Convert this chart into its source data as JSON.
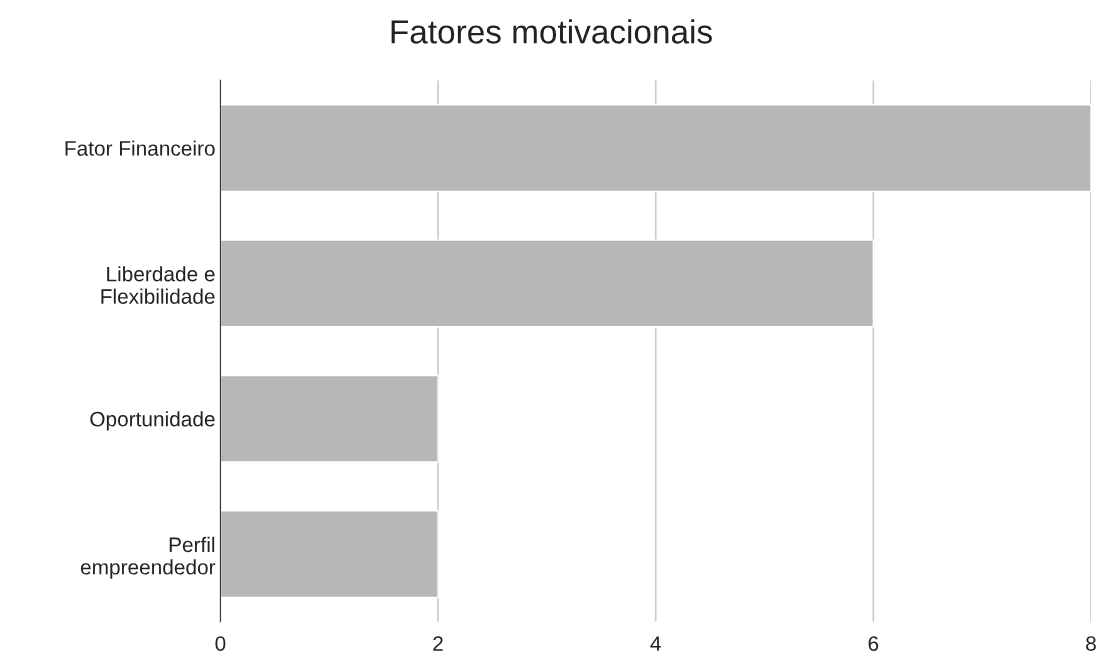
{
  "chart_data": {
    "type": "bar",
    "orientation": "horizontal",
    "title": "Fatores motivacionais",
    "categories": [
      "Fator Financeiro",
      "Liberdade e\nFlexibilidade",
      "Oportunidade",
      "Perfil\nempreendedor"
    ],
    "values": [
      8,
      6,
      2,
      2
    ],
    "color": "#b7b7b7",
    "xlim": [
      0,
      8
    ],
    "xticks": [
      0,
      2,
      4,
      6,
      8
    ],
    "grid": "x"
  }
}
